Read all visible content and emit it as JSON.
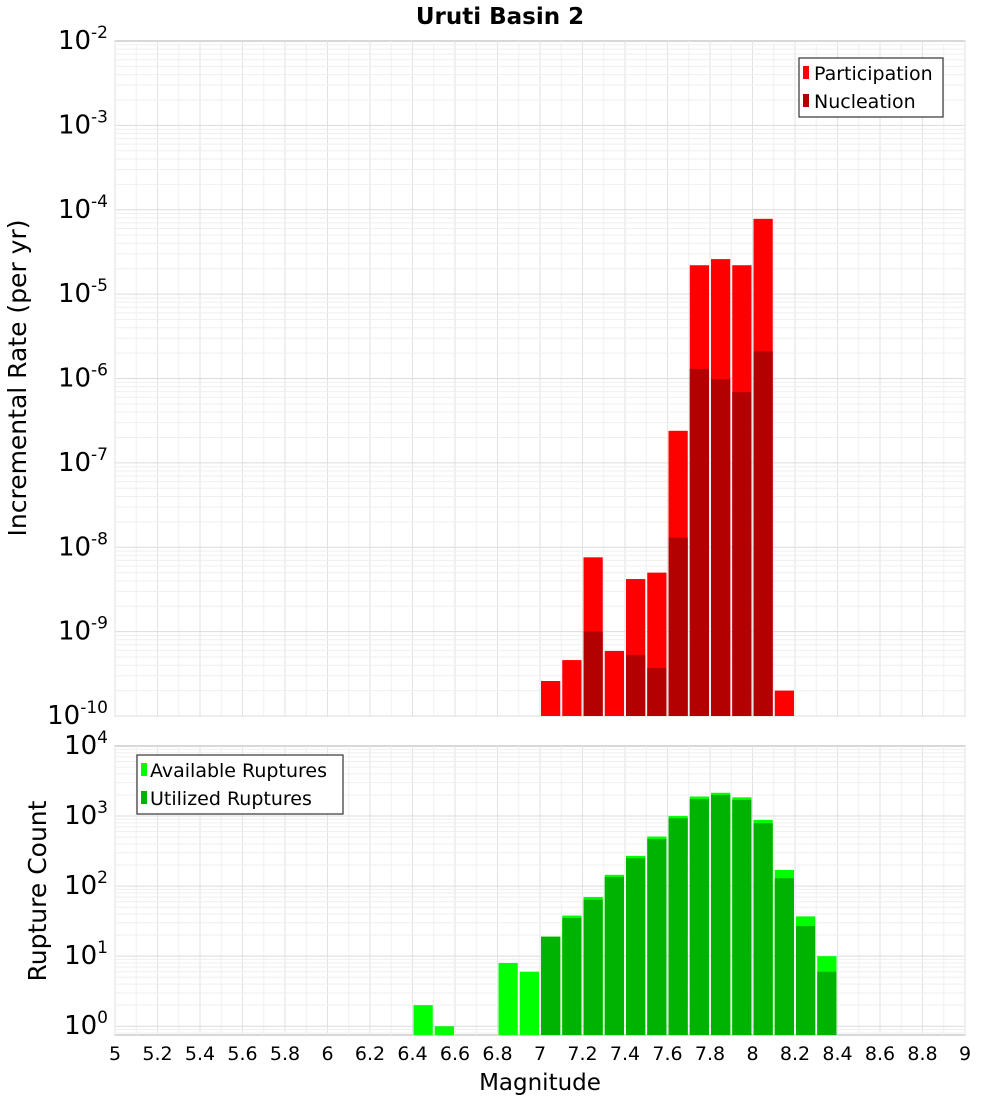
{
  "chart_data": [
    {
      "type": "bar",
      "title": "Uruti Basin 2",
      "xlabel": "Magnitude",
      "ylabel": "Incremental Rate (per yr)",
      "yscale": "log",
      "ylim": [
        1e-10,
        0.01
      ],
      "xlim": [
        5,
        9
      ],
      "grid": true,
      "legend_position": "top-right",
      "bin_width": 0.1,
      "y_ticks": [
        {
          "base": "10",
          "exp": "-2"
        },
        {
          "base": "10",
          "exp": "-3"
        },
        {
          "base": "10",
          "exp": "-4"
        },
        {
          "base": "10",
          "exp": "-5"
        },
        {
          "base": "10",
          "exp": "-6"
        },
        {
          "base": "10",
          "exp": "-7"
        },
        {
          "base": "10",
          "exp": "-8"
        },
        {
          "base": "10",
          "exp": "-9"
        },
        {
          "base": "10",
          "exp": "-10"
        }
      ],
      "series": [
        {
          "name": "Participation",
          "color": "#ff0000",
          "x": [
            7.05,
            7.15,
            7.25,
            7.35,
            7.45,
            7.55,
            7.65,
            7.75,
            7.85,
            7.95,
            8.05,
            8.15
          ],
          "values": [
            2.6e-10,
            4.6e-10,
            7.6e-09,
            5.9e-10,
            4.2e-09,
            5e-09,
            2.4e-07,
            2.2e-05,
            2.6e-05,
            2.2e-05,
            7.8e-05,
            2e-10
          ]
        },
        {
          "name": "Nucleation",
          "color": "#b30000",
          "x": [
            7.25,
            7.45,
            7.55,
            7.65,
            7.75,
            7.85,
            7.95,
            8.05
          ],
          "values": [
            1e-09,
            5.3e-10,
            3.7e-10,
            1.3e-08,
            1.3e-06,
            9.8e-07,
            6.9e-07,
            2.1e-06
          ]
        }
      ]
    },
    {
      "type": "bar",
      "title": "",
      "xlabel": "Magnitude",
      "ylabel": "Rupture Count",
      "yscale": "log",
      "ylim": [
        0.75,
        10000
      ],
      "xlim": [
        5,
        9
      ],
      "grid": true,
      "legend_position": "top-left",
      "bin_width": 0.1,
      "x_tick_labels": [
        "5",
        "5.2",
        "5.4",
        "5.6",
        "5.8",
        "6",
        "6.2",
        "6.4",
        "6.6",
        "6.8",
        "7",
        "7.2",
        "7.4",
        "7.6",
        "7.8",
        "8",
        "8.2",
        "8.4",
        "8.6",
        "8.8",
        "9"
      ],
      "y_ticks": [
        {
          "base": "10",
          "exp": "4"
        },
        {
          "base": "10",
          "exp": "3"
        },
        {
          "base": "10",
          "exp": "2"
        },
        {
          "base": "10",
          "exp": "1"
        },
        {
          "base": "10",
          "exp": "0"
        }
      ],
      "series": [
        {
          "name": "Available Ruptures",
          "color": "#00ff00",
          "x": [
            6.45,
            6.55,
            6.85,
            6.95,
            7.05,
            7.15,
            7.25,
            7.35,
            7.45,
            7.55,
            7.65,
            7.75,
            7.85,
            7.95,
            8.05,
            8.15,
            8.25,
            8.35
          ],
          "values": [
            2,
            1,
            8,
            6,
            19,
            38,
            70,
            145,
            270,
            510,
            1000,
            1900,
            2150,
            1850,
            880,
            170,
            37,
            10
          ]
        },
        {
          "name": "Utilized Ruptures",
          "color": "#00b300",
          "x": [
            7.05,
            7.15,
            7.25,
            7.35,
            7.45,
            7.55,
            7.65,
            7.75,
            7.85,
            7.95,
            8.05,
            8.15,
            8.25,
            8.35
          ],
          "values": [
            19,
            35,
            64,
            135,
            250,
            470,
            930,
            1750,
            2000,
            1700,
            790,
            130,
            27,
            6
          ]
        }
      ]
    }
  ]
}
